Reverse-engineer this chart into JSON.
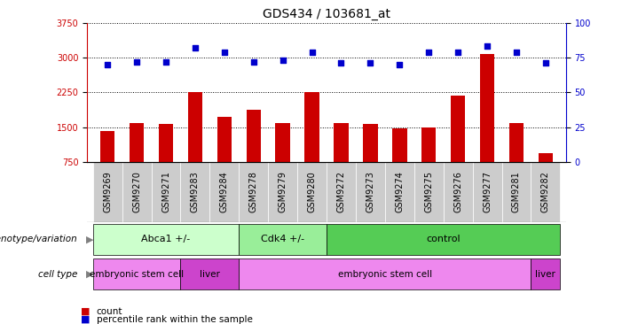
{
  "title": "GDS434 / 103681_at",
  "samples": [
    "GSM9269",
    "GSM9270",
    "GSM9271",
    "GSM9283",
    "GSM9284",
    "GSM9278",
    "GSM9279",
    "GSM9280",
    "GSM9272",
    "GSM9273",
    "GSM9274",
    "GSM9275",
    "GSM9276",
    "GSM9277",
    "GSM9281",
    "GSM9282"
  ],
  "counts": [
    1420,
    1600,
    1580,
    2250,
    1720,
    1870,
    1590,
    2250,
    1590,
    1570,
    1470,
    1490,
    2180,
    3070,
    1590,
    950
  ],
  "percentiles": [
    70,
    72,
    72,
    82,
    79,
    72,
    73,
    79,
    71,
    71,
    70,
    79,
    79,
    83,
    79,
    71
  ],
  "bar_color": "#cc0000",
  "dot_color": "#0000cc",
  "ylim_left": [
    750,
    3750
  ],
  "ylim_right": [
    0,
    100
  ],
  "yticks_left": [
    750,
    1500,
    2250,
    3000,
    3750
  ],
  "yticks_right": [
    0,
    25,
    50,
    75,
    100
  ],
  "genotype_groups": [
    {
      "label": "Abca1 +/-",
      "start": 0,
      "end": 5,
      "color": "#ccffcc"
    },
    {
      "label": "Cdk4 +/-",
      "start": 5,
      "end": 8,
      "color": "#99ee99"
    },
    {
      "label": "control",
      "start": 8,
      "end": 16,
      "color": "#55cc55"
    }
  ],
  "celltype_groups": [
    {
      "label": "embryonic stem cell",
      "start": 0,
      "end": 3,
      "color": "#ee88ee"
    },
    {
      "label": "liver",
      "start": 3,
      "end": 5,
      "color": "#cc44cc"
    },
    {
      "label": "embryonic stem cell",
      "start": 5,
      "end": 15,
      "color": "#ee88ee"
    },
    {
      "label": "liver",
      "start": 15,
      "end": 16,
      "color": "#cc44cc"
    }
  ],
  "legend_count_color": "#cc0000",
  "legend_pct_color": "#0000cc",
  "title_fontsize": 10,
  "tick_fontsize": 7,
  "label_fontsize": 8,
  "tick_bg_color": "#cccccc"
}
